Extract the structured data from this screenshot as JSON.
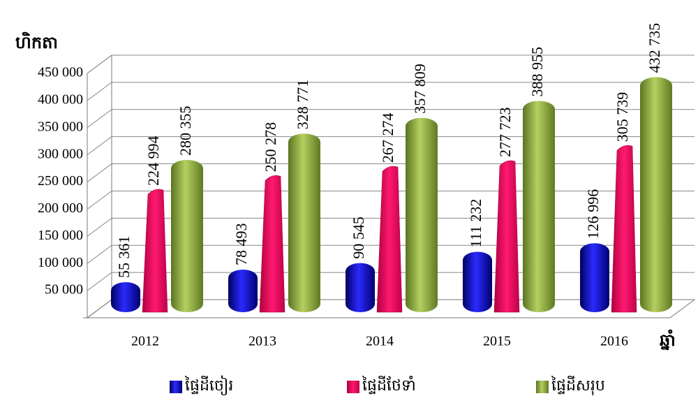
{
  "chart_data": {
    "type": "bar",
    "y_label": "ហិកតា",
    "x_label": "ឆ្នាំ",
    "categories": [
      "2012",
      "2013",
      "2014",
      "2015",
      "2016"
    ],
    "series": [
      {
        "name": "ផ្ទៃដីចៀរ",
        "color": "#1a1ad0",
        "values": [
          55361,
          78493,
          90545,
          111232,
          126996
        ],
        "value_labels": [
          "55 361",
          "78 493",
          "90 545",
          "111 232",
          "126 996"
        ]
      },
      {
        "name": "ផ្ទៃដីថែទាំ",
        "color": "#ff1a6e",
        "values": [
          224994,
          250278,
          267274,
          277723,
          305739
        ],
        "value_labels": [
          "224 994",
          "250 278",
          "267 274",
          "277 723",
          "305 739"
        ]
      },
      {
        "name": "ផ្ទៃដីសរុប",
        "color": "#9ebd45",
        "values": [
          280355,
          328771,
          357809,
          388955,
          432735
        ],
        "value_labels": [
          "280 355",
          "328 771",
          "357 809",
          "388 955",
          "432 735"
        ]
      }
    ],
    "ylim": [
      0,
      450000
    ],
    "yticks": [
      {
        "value": 50000,
        "label": "50 000"
      },
      {
        "value": 100000,
        "label": "100 000"
      },
      {
        "value": 150000,
        "label": "150 000"
      },
      {
        "value": 200000,
        "label": "200 000"
      },
      {
        "value": 250000,
        "label": "250 000"
      },
      {
        "value": 300000,
        "label": "300 000"
      },
      {
        "value": 350000,
        "label": "350 000"
      },
      {
        "value": 400000,
        "label": "400 000"
      },
      {
        "value": 450000,
        "label": "450 000"
      }
    ],
    "grid": true,
    "legend": "bottom"
  }
}
